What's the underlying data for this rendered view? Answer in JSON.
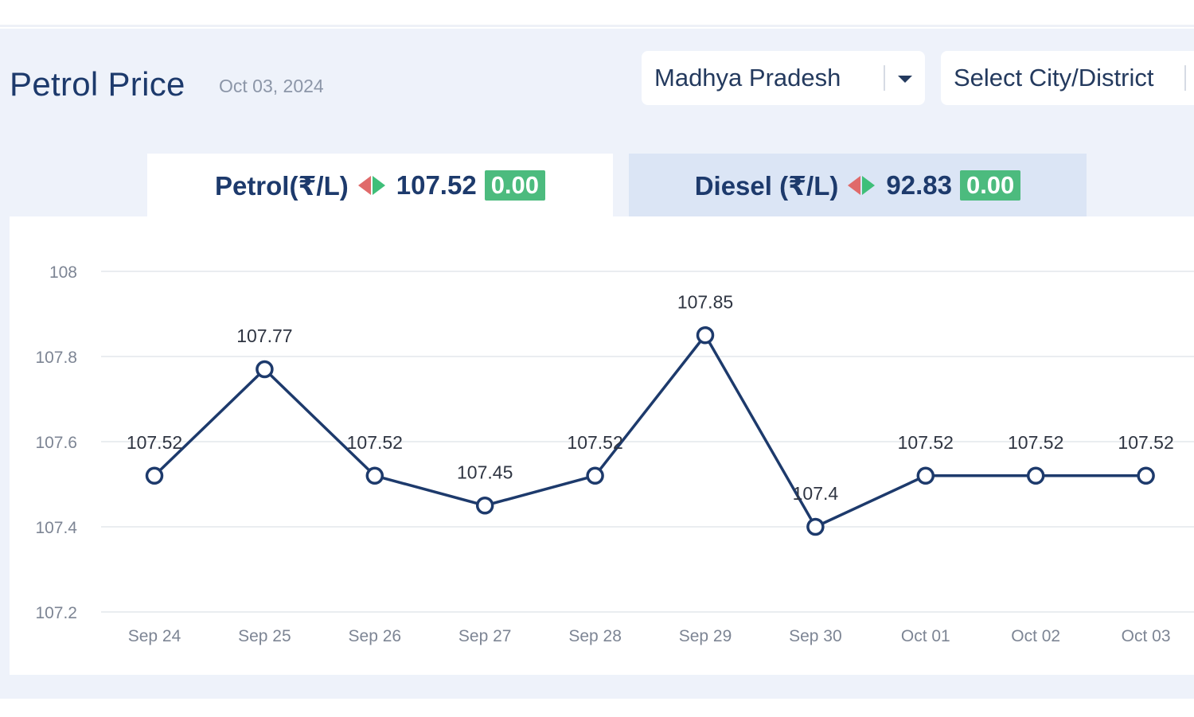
{
  "header": {
    "title": "Petrol Price",
    "date": "Oct 03, 2024"
  },
  "filters": {
    "state_value": "Madhya Pradesh",
    "city_placeholder": "Select City/District"
  },
  "tabs": [
    {
      "label": "Petrol(₹/L)",
      "price": "107.52",
      "change": "0.00",
      "active": true
    },
    {
      "label": "Diesel (₹/L)",
      "price": "92.83",
      "change": "0.00",
      "active": false
    }
  ],
  "colors": {
    "line": "#1d3a6c",
    "badge": "#4cbb7e",
    "up_arrow": "#3fbf79",
    "down_arrow": "#e06a6a"
  },
  "chart_data": {
    "type": "line",
    "x": [
      "Sep 24",
      "Sep 25",
      "Sep 26",
      "Sep 27",
      "Sep 28",
      "Sep 29",
      "Sep 30",
      "Oct 01",
      "Oct 02",
      "Oct 03"
    ],
    "series": [
      {
        "values": [
          107.52,
          107.77,
          107.52,
          107.45,
          107.52,
          107.85,
          107.4,
          107.52,
          107.52,
          107.52
        ]
      }
    ],
    "data_labels": [
      "107.52",
      "107.77",
      "107.52",
      "107.45",
      "107.52",
      "107.85",
      "107.4",
      "107.52",
      "107.52",
      "107.52"
    ],
    "y_ticks": [
      "107.2",
      "107.4",
      "107.6",
      "107.8",
      "108"
    ],
    "ylim": [
      107.2,
      108
    ],
    "grid": true,
    "legend": "none"
  }
}
